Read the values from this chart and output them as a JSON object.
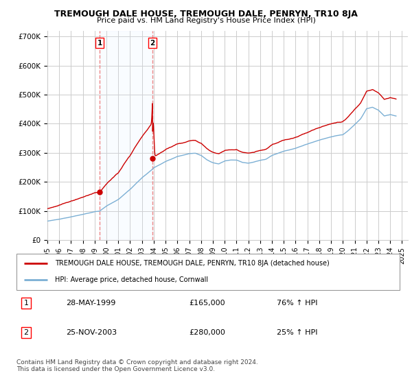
{
  "title": "TREMOUGH DALE HOUSE, TREMOUGH DALE, PENRYN, TR10 8JA",
  "subtitle": "Price paid vs. HM Land Registry's House Price Index (HPI)",
  "ylabel_ticks": [
    "£0",
    "£100K",
    "£200K",
    "£300K",
    "£400K",
    "£500K",
    "£600K",
    "£700K"
  ],
  "ytick_values": [
    0,
    100000,
    200000,
    300000,
    400000,
    500000,
    600000,
    700000
  ],
  "ylim": [
    0,
    720000
  ],
  "xlim_start": 1995.0,
  "xlim_end": 2025.5,
  "purchase1": {
    "date_label": "28-MAY-1999",
    "price": 165000,
    "year": 1999.42,
    "label": "1",
    "hpi_change": "76% ↑ HPI"
  },
  "purchase2": {
    "date_label": "25-NOV-2003",
    "price": 280000,
    "year": 2003.9,
    "label": "2",
    "hpi_change": "25% ↑ HPI"
  },
  "red_line_color": "#cc0000",
  "blue_line_color": "#7bafd4",
  "shade_color": "#ddeeff",
  "vline_color": "#ee8888",
  "dot_color": "#cc0000",
  "grid_color": "#cccccc",
  "background_color": "#ffffff",
  "legend_line1": "TREMOUGH DALE HOUSE, TREMOUGH DALE, PENRYN, TR10 8JA (detached house)",
  "legend_line2": "HPI: Average price, detached house, Cornwall",
  "footer": "Contains HM Land Registry data © Crown copyright and database right 2024.\nThis data is licensed under the Open Government Licence v3.0.",
  "xtick_years": [
    1995,
    1996,
    1997,
    1998,
    1999,
    2000,
    2001,
    2002,
    2003,
    2004,
    2005,
    2006,
    2007,
    2008,
    2009,
    2010,
    2011,
    2012,
    2013,
    2014,
    2015,
    2016,
    2017,
    2018,
    2019,
    2020,
    2021,
    2022,
    2023,
    2024,
    2025
  ]
}
